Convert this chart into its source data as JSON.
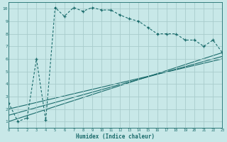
{
  "xlabel": "Humidex (Indice chaleur)",
  "xlim": [
    0,
    23
  ],
  "ylim": [
    0.5,
    10.5
  ],
  "yticks": [
    1,
    2,
    3,
    4,
    5,
    6,
    7,
    8,
    9,
    10
  ],
  "xticks": [
    0,
    1,
    2,
    3,
    4,
    5,
    6,
    7,
    8,
    9,
    10,
    11,
    12,
    13,
    14,
    15,
    16,
    17,
    18,
    19,
    20,
    21,
    22,
    23
  ],
  "bg_color": "#c8e8e8",
  "grid_color": "#a8cccc",
  "line_color": "#1a6b6b",
  "line1_x": [
    0,
    1,
    2,
    3,
    4,
    5,
    6,
    7,
    8,
    9,
    10,
    11,
    12,
    13,
    14,
    15,
    16,
    17,
    18,
    19,
    20,
    21,
    22,
    23
  ],
  "line1_y": [
    2.5,
    1.0,
    1.3,
    6.0,
    1.1,
    10.1,
    9.4,
    10.1,
    9.8,
    10.1,
    9.9,
    9.9,
    9.5,
    9.2,
    9.0,
    8.5,
    8.0,
    8.0,
    8.0,
    7.5,
    7.5,
    7.0,
    7.5,
    6.5
  ],
  "line2_x": [
    0,
    23
  ],
  "line2_y": [
    1.0,
    6.5
  ],
  "line3_x": [
    0,
    23
  ],
  "line3_y": [
    1.5,
    6.2
  ],
  "line4_x": [
    0,
    23
  ],
  "line4_y": [
    2.0,
    6.0
  ]
}
